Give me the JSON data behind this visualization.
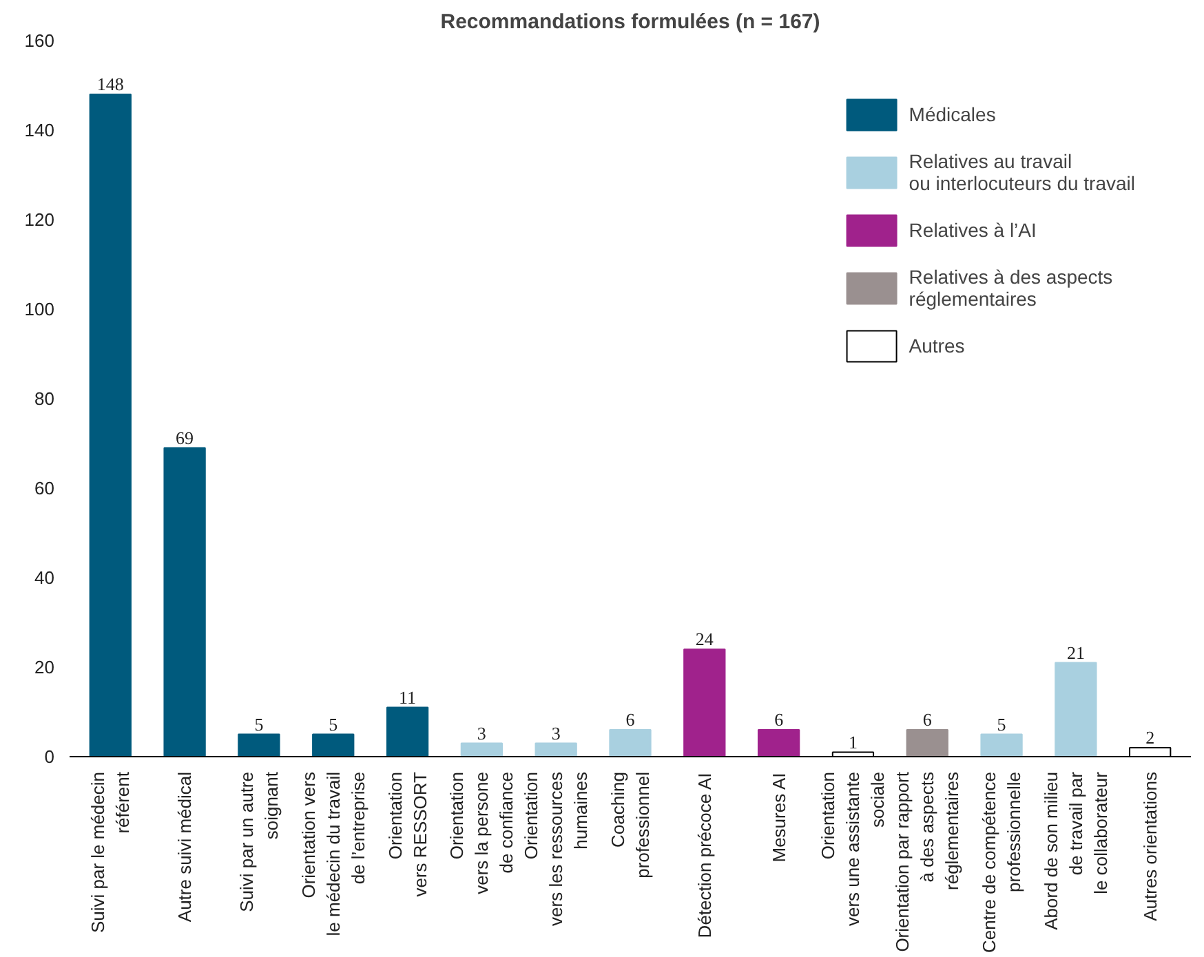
{
  "chart_data": {
    "type": "bar",
    "title": "Recommandations formulées (n = 167)",
    "categories": [
      "Suivi par le médecin\nréférent",
      "Autre suivi médical",
      "Suivi par un autre\nsoignant",
      "Orientation vers\nle médecin du travail\nde l’entreprise",
      "Orientation\nvers RESSORT",
      "Orientation\nvers la persone\nde confiance",
      "Orientation\nvers les ressources\nhumaines",
      "Coaching\nprofessionnel",
      "Détection précoce AI",
      "Mesures AI",
      "Orientation\nvers une assistante\nsociale",
      "Orientation par rapport\nà des aspects\nréglementaires",
      "Centre de compétence\nprofessionnelle",
      "Abord de son milieu\nde travail par\nle collaborateur",
      "Autres orientations"
    ],
    "series": [
      {
        "name": "Médicales",
        "color": "#005a7d",
        "values": [
          148,
          69,
          5,
          5,
          11,
          null,
          null,
          null,
          null,
          null,
          null,
          null,
          null,
          null,
          null
        ]
      },
      {
        "name": "Relatives au travail\nou interlocuteurs du travail",
        "color": "#a9d0e0",
        "values": [
          null,
          null,
          null,
          null,
          null,
          3,
          3,
          6,
          null,
          null,
          null,
          null,
          5,
          21,
          null
        ]
      },
      {
        "name": "Relatives à l’AI",
        "color": "#a0228c",
        "values": [
          null,
          null,
          null,
          null,
          null,
          null,
          null,
          null,
          24,
          6,
          null,
          null,
          null,
          null,
          null
        ]
      },
      {
        "name": "Relatives à des aspects\nréglementaires",
        "color": "#9a9090",
        "values": [
          null,
          null,
          null,
          null,
          null,
          null,
          null,
          null,
          null,
          null,
          null,
          6,
          null,
          null,
          null
        ]
      },
      {
        "name": "Autres",
        "color": "#ffffff",
        "values": [
          null,
          null,
          null,
          null,
          null,
          null,
          null,
          null,
          null,
          null,
          1,
          null,
          null,
          null,
          2
        ]
      }
    ],
    "ylim": [
      0,
      160
    ],
    "yticks": [
      0,
      20,
      40,
      60,
      80,
      100,
      120,
      140,
      160
    ],
    "grid": false,
    "legend": "top right",
    "data_labels": true
  }
}
